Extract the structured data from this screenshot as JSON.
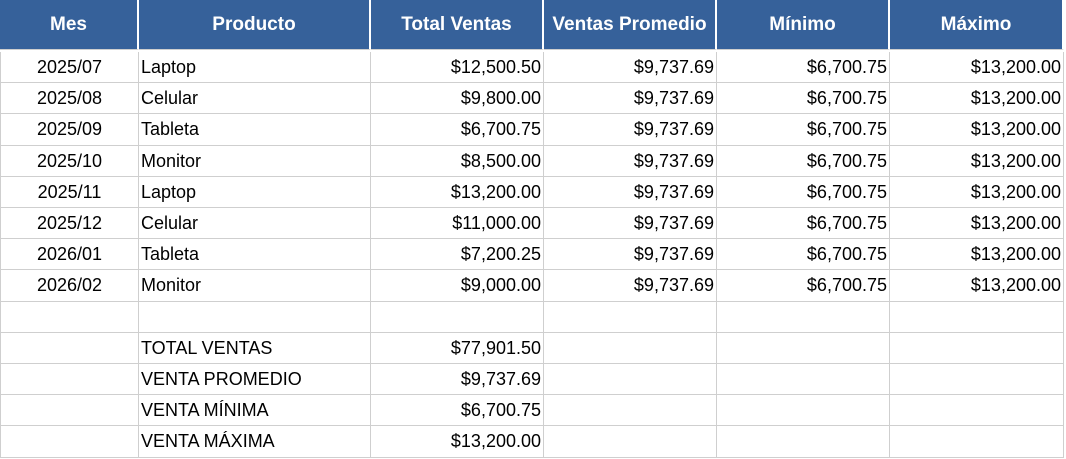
{
  "header": {
    "columns": [
      "Mes",
      "Producto",
      "Total Ventas",
      "Ventas Promedio",
      "Mínimo",
      "Máximo"
    ]
  },
  "table": {
    "rows": [
      [
        "2025/07",
        "Laptop",
        "$12,500.50",
        "$9,737.69",
        "$6,700.75",
        "$13,200.00"
      ],
      [
        "2025/08",
        "Celular",
        "$9,800.00",
        "$9,737.69",
        "$6,700.75",
        "$13,200.00"
      ],
      [
        "2025/09",
        "Tableta",
        "$6,700.75",
        "$9,737.69",
        "$6,700.75",
        "$13,200.00"
      ],
      [
        "2025/10",
        "Monitor",
        "$8,500.00",
        "$9,737.69",
        "$6,700.75",
        "$13,200.00"
      ],
      [
        "2025/11",
        "Laptop",
        "$13,200.00",
        "$9,737.69",
        "$6,700.75",
        "$13,200.00"
      ],
      [
        "2025/12",
        "Celular",
        "$11,000.00",
        "$9,737.69",
        "$6,700.75",
        "$13,200.00"
      ],
      [
        "2026/01",
        "Tableta",
        "$7,200.25",
        "$9,737.69",
        "$6,700.75",
        "$13,200.00"
      ],
      [
        "2026/02",
        "Monitor",
        "$9,000.00",
        "$9,737.69",
        "$6,700.75",
        "$13,200.00"
      ]
    ]
  },
  "summary": {
    "rows": [
      [
        "TOTAL VENTAS",
        "$77,901.50"
      ],
      [
        "VENTA PROMEDIO",
        "$9,737.69"
      ],
      [
        "VENTA MÍNIMA",
        "$6,700.75"
      ],
      [
        "VENTA MÁXIMA",
        "$13,200.00"
      ]
    ]
  }
}
